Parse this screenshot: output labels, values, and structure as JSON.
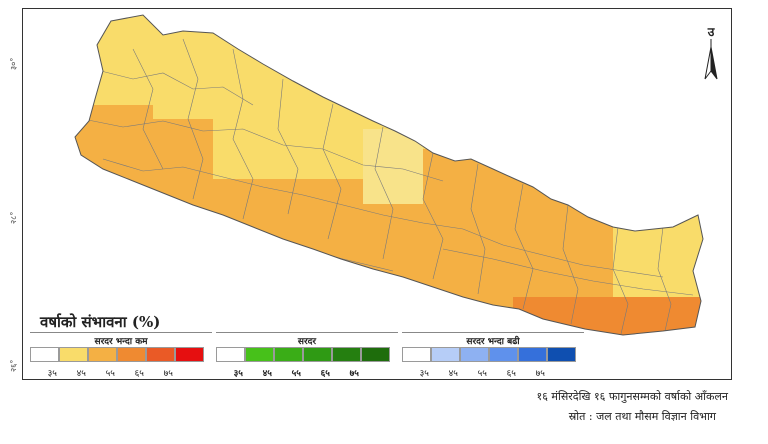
{
  "map": {
    "title": "वर्षाको संभावना (%)",
    "north_label": "उ",
    "lat_labels": [
      "३०°",
      "२८°",
      "२६°"
    ],
    "region_colors": {
      "light_yellow": "#f9dc6a",
      "pale_yellow": "#f8e38a",
      "light_orange": "#f4b044",
      "orange": "#ef8a31",
      "border": "#7a7a7a",
      "outline": "#555555"
    }
  },
  "legend": {
    "groups": [
      {
        "name": "below-normal",
        "heading": "सरदर भन्दा कम",
        "colors": [
          "#ffffff",
          "#f9dc6a",
          "#f4b044",
          "#ef8a31",
          "#ea5a26",
          "#e60f10"
        ],
        "ticks": [
          "३५",
          "४५",
          "५५",
          "६५",
          "७५"
        ]
      },
      {
        "name": "normal",
        "heading": "सरदर",
        "colors": [
          "#ffffff",
          "#47c11a",
          "#3aad17",
          "#2f9a14",
          "#257f10",
          "#1e6d0c"
        ],
        "ticks": [
          "३५",
          "४५",
          "५५",
          "६५",
          "७५"
        ]
      },
      {
        "name": "above-normal",
        "heading": "सरदर भन्दा बढी",
        "colors": [
          "#ffffff",
          "#b6cdf7",
          "#8eb1f2",
          "#5f91ec",
          "#3570db",
          "#0f4fb0"
        ],
        "ticks": [
          "३५",
          "४५",
          "५५",
          "६५",
          "७५"
        ]
      }
    ]
  },
  "footer": {
    "forecast": "१६ मंसिरदेखि १६ फागुनसम्मको वर्षाको आँकलन",
    "source": "स्रोत : जल तथा मौसम विज्ञान विभाग"
  }
}
